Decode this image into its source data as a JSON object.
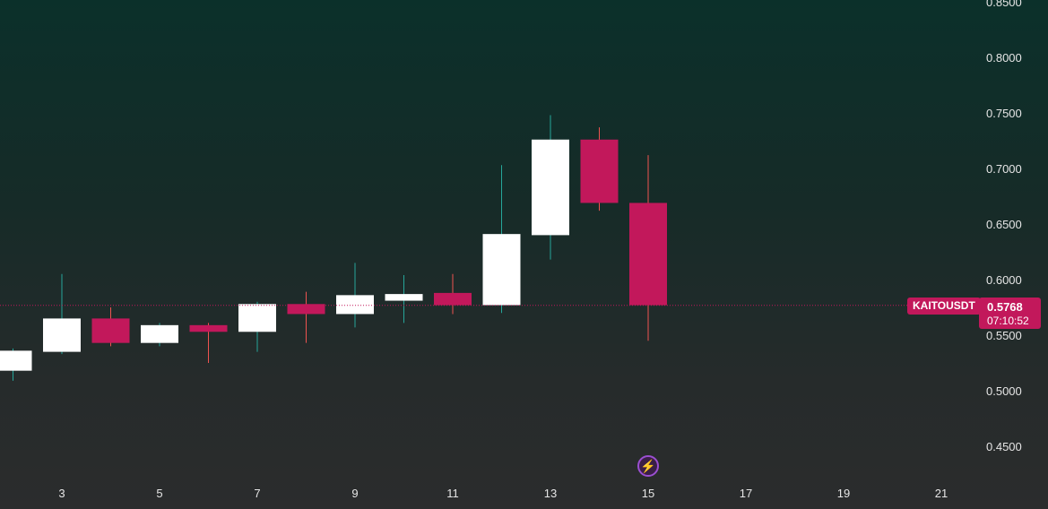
{
  "chart_data": {
    "type": "candlestick",
    "symbol": "KAITOUSDT",
    "last_price": "0.5768",
    "countdown": "07:10:52",
    "y_ticks": [
      "0.8500",
      "0.8000",
      "0.7500",
      "0.7000",
      "0.6500",
      "0.6000",
      "0.5500",
      "0.5000",
      "0.4500"
    ],
    "y_tick_values": [
      0.85,
      0.8,
      0.75,
      0.7,
      0.65,
      0.6,
      0.55,
      0.5,
      0.45
    ],
    "x_ticks": [
      "3",
      "5",
      "7",
      "9",
      "11",
      "13",
      "15",
      "17",
      "19",
      "21"
    ],
    "x_tick_values": [
      3,
      5,
      7,
      9,
      11,
      13,
      15,
      17,
      19,
      21
    ],
    "ylim": [
      0.43,
      0.855
    ],
    "xlim": [
      1.1,
      22.1
    ],
    "candles": [
      {
        "day": 2,
        "open": 0.518,
        "high": 0.538,
        "low": 0.509,
        "close": 0.536
      },
      {
        "day": 3,
        "open": 0.535,
        "high": 0.605,
        "low": 0.533,
        "close": 0.565
      },
      {
        "day": 4,
        "open": 0.565,
        "high": 0.575,
        "low": 0.54,
        "close": 0.543
      },
      {
        "day": 5,
        "open": 0.543,
        "high": 0.561,
        "low": 0.54,
        "close": 0.559
      },
      {
        "day": 6,
        "open": 0.559,
        "high": 0.561,
        "low": 0.525,
        "close": 0.553
      },
      {
        "day": 7,
        "open": 0.553,
        "high": 0.58,
        "low": 0.535,
        "close": 0.578
      },
      {
        "day": 8,
        "open": 0.578,
        "high": 0.589,
        "low": 0.543,
        "close": 0.569
      },
      {
        "day": 9,
        "open": 0.569,
        "high": 0.615,
        "low": 0.557,
        "close": 0.586
      },
      {
        "day": 10,
        "open": 0.581,
        "high": 0.604,
        "low": 0.561,
        "close": 0.587
      },
      {
        "day": 11,
        "open": 0.588,
        "high": 0.605,
        "low": 0.569,
        "close": 0.577
      },
      {
        "day": 12,
        "open": 0.577,
        "high": 0.703,
        "low": 0.57,
        "close": 0.641
      },
      {
        "day": 13,
        "open": 0.64,
        "high": 0.748,
        "low": 0.618,
        "close": 0.726
      },
      {
        "day": 14,
        "open": 0.726,
        "high": 0.737,
        "low": 0.662,
        "close": 0.669
      },
      {
        "day": 15,
        "open": 0.669,
        "high": 0.712,
        "low": 0.545,
        "close": 0.577
      }
    ],
    "colors": {
      "up": "#ffffff",
      "down": "#c2185b",
      "up_wick": "#26a69a",
      "down_wick": "#ef5350",
      "price_line": "#c2185b",
      "text": "#e6e6e6"
    }
  }
}
